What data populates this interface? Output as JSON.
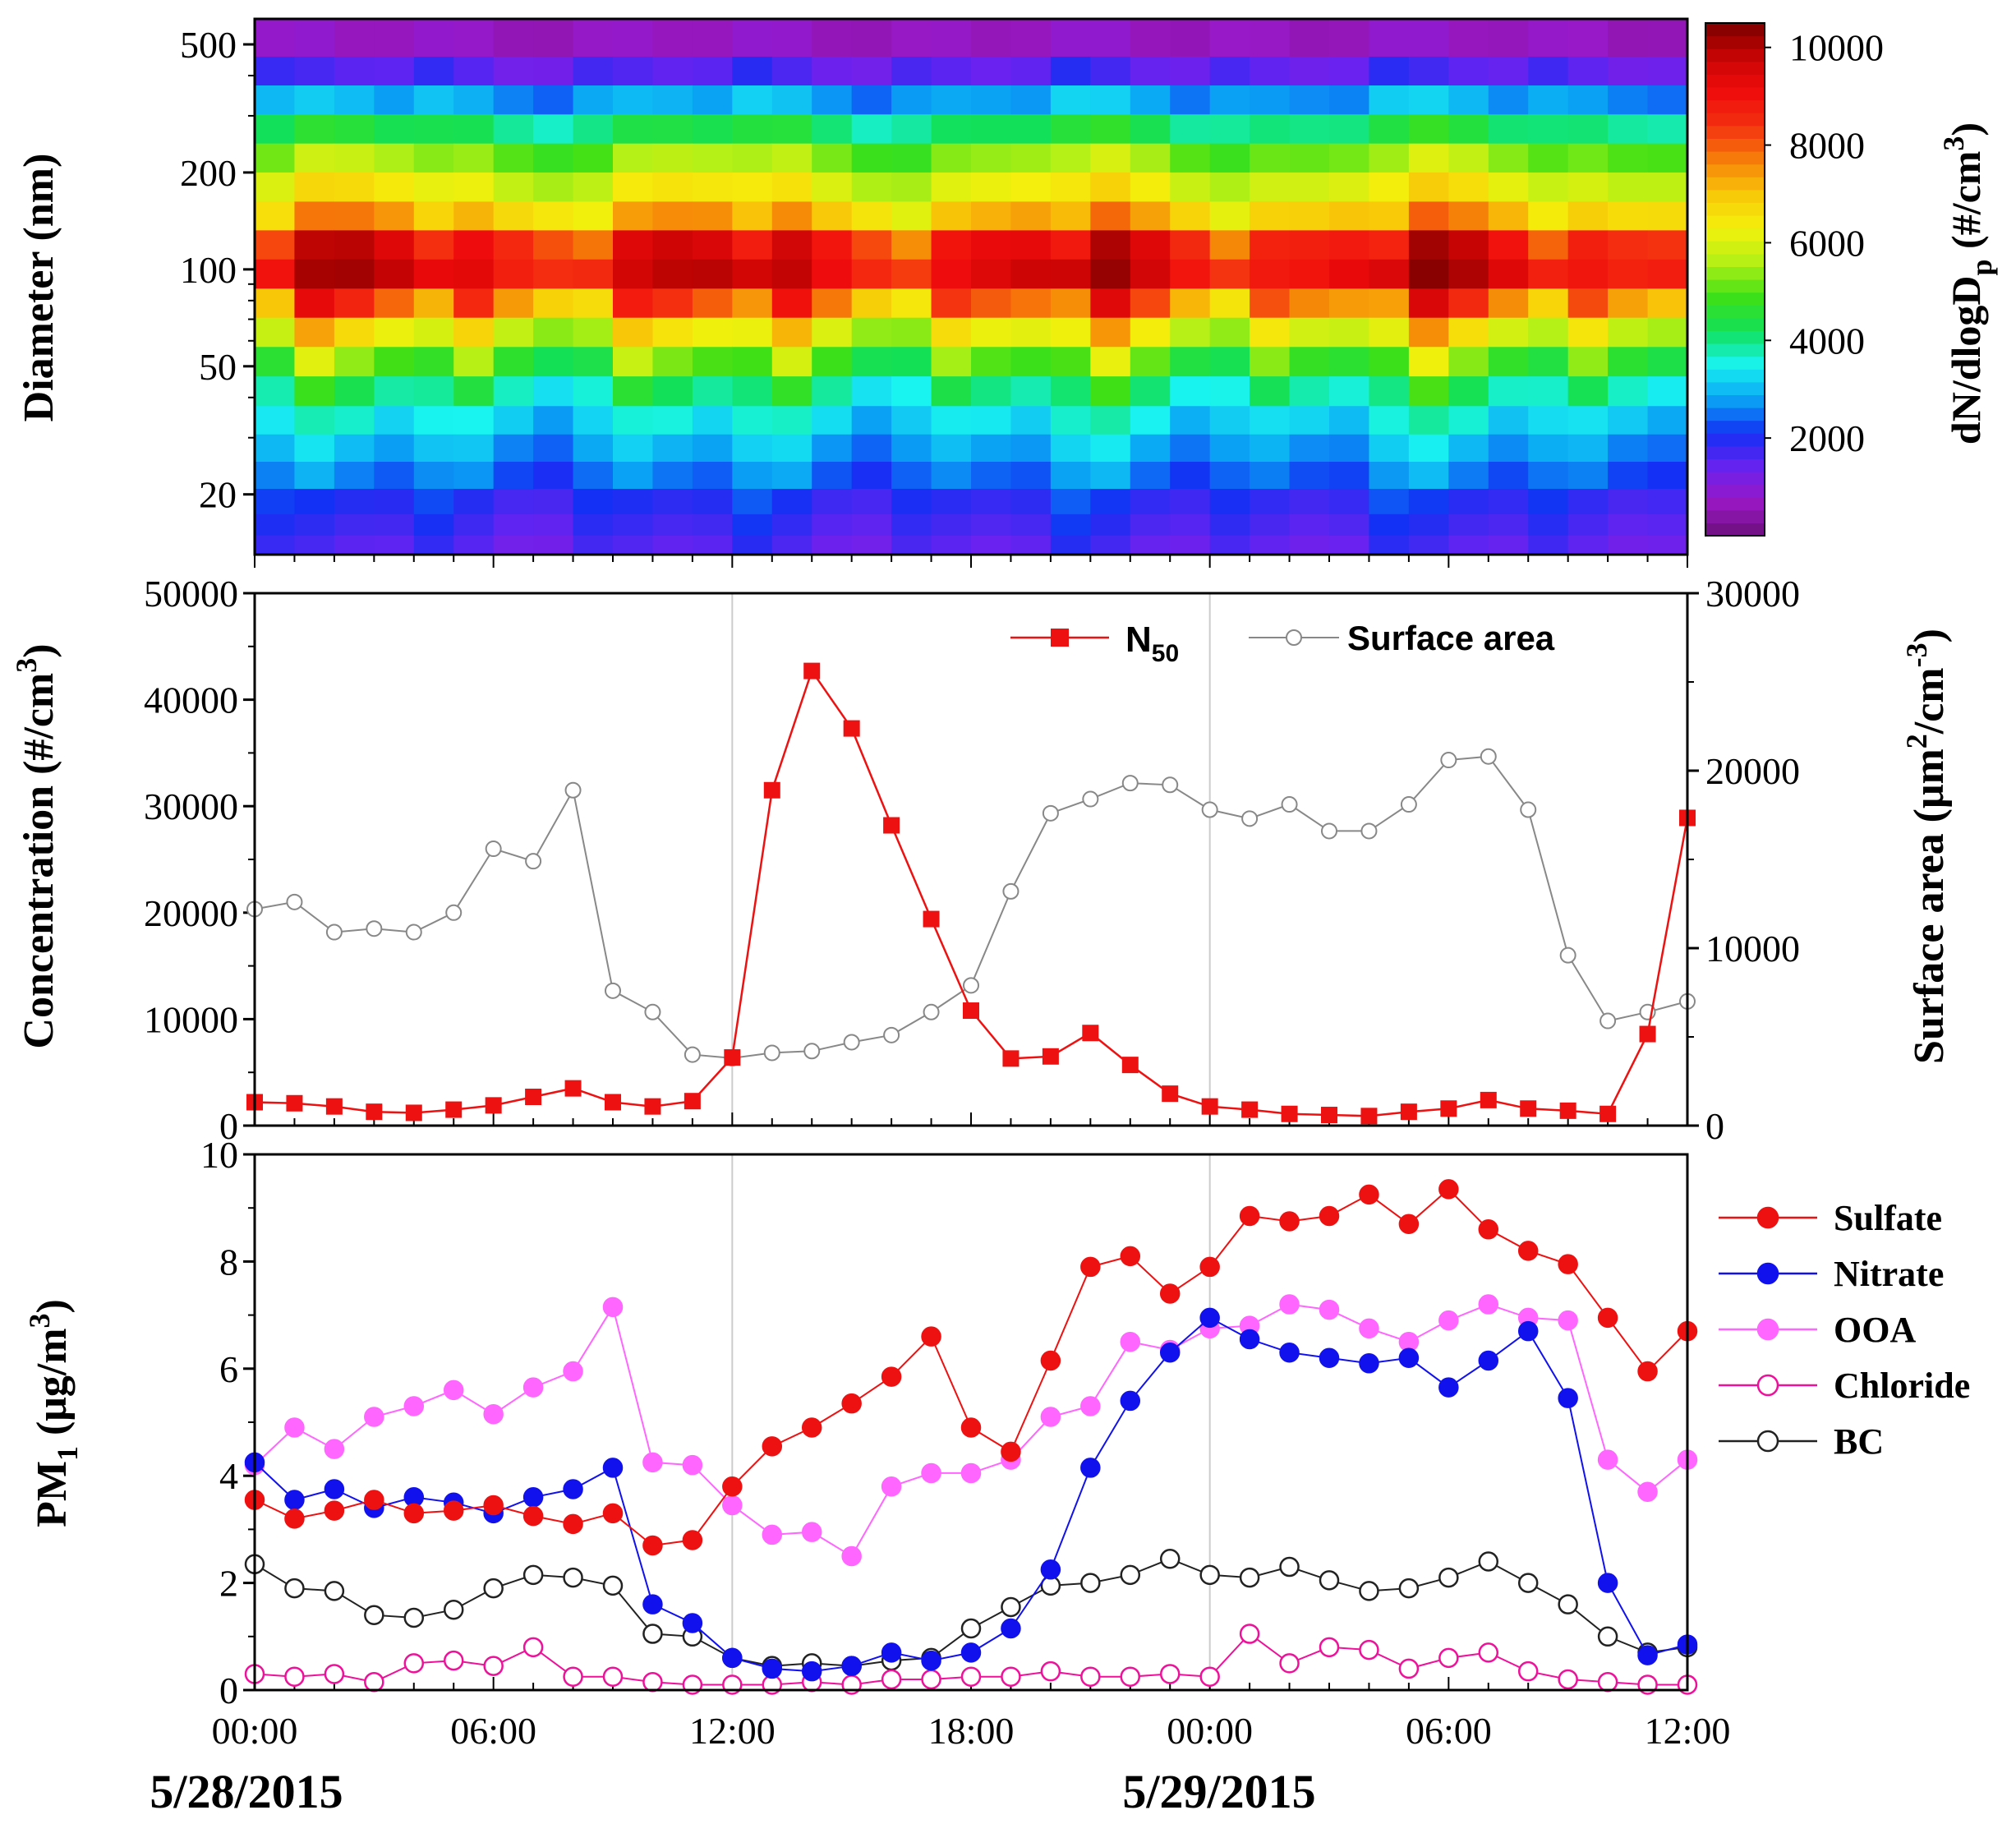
{
  "figure": {
    "x_ticks": [
      "00:00",
      "06:00",
      "12:00",
      "18:00",
      "00:00",
      "06:00",
      "12:00"
    ],
    "date_labels": [
      "5/28/2015",
      "5/29/2015"
    ]
  },
  "chart_data": [
    {
      "type": "heatmap",
      "title": "",
      "ylabel": "Diameter (nm)",
      "y_scale": "log",
      "ylim": [
        13,
        600
      ],
      "y_ticks": [
        20,
        50,
        100,
        200,
        500
      ],
      "y_tick_labels": [
        "20",
        "50",
        "100",
        "200",
        "500"
      ],
      "colorbar": {
        "label": "dN/dlogD",
        "label_sub": "p",
        "label_suffix": " (#/cm",
        "label_sup": "3",
        "label_end": ")",
        "range": [
          0,
          10500
        ],
        "ticks": [
          2000,
          4000,
          6000,
          8000,
          10000
        ],
        "tick_labels": [
          "2000",
          "4000",
          "6000",
          "8000",
          "10000"
        ],
        "stops": [
          "#6d0f7a",
          "#9a18c4",
          "#6a22f0",
          "#1230f4",
          "#0aa2f4",
          "#19f4f0",
          "#12e05a",
          "#3ee016",
          "#b4f016",
          "#f4f00c",
          "#f8c808",
          "#f67f08",
          "#f43010",
          "#f00c0c",
          "#c80404",
          "#7a0000"
        ]
      },
      "diameter_bins_nm": [
        14,
        16,
        19,
        23,
        28,
        34,
        42,
        52,
        64,
        79,
        97,
        120,
        147,
        181,
        223,
        274,
        338,
        415,
        510
      ],
      "hours": [
        "00",
        "01",
        "02",
        "03",
        "04",
        "05",
        "06",
        "07",
        "08",
        "09",
        "10",
        "11",
        "12",
        "13",
        "14",
        "15",
        "16",
        "17",
        "18",
        "19",
        "20",
        "21",
        "22",
        "23",
        "24",
        "25",
        "26",
        "27",
        "28",
        "29",
        "30",
        "31",
        "32",
        "33",
        "34",
        "35",
        "36"
      ],
      "values_profile_x100": [
        [
          18,
          20,
          22,
          26,
          30,
          34,
          38,
          46,
          58,
          70,
          90,
          82,
          66,
          60,
          52,
          42,
          30,
          18,
          8
        ],
        [
          16,
          18,
          20,
          28,
          32,
          36,
          46,
          58,
          70,
          88,
          96,
          94,
          74,
          64,
          56,
          44,
          30,
          16,
          8
        ],
        [
          14,
          16,
          18,
          24,
          28,
          34,
          40,
          50,
          62,
          80,
          94,
          92,
          72,
          62,
          54,
          42,
          28,
          14,
          6
        ],
        [
          14,
          16,
          18,
          22,
          26,
          30,
          36,
          46,
          58,
          74,
          92,
          88,
          70,
          60,
          52,
          40,
          26,
          14,
          6
        ]
      ]
    },
    {
      "type": "line",
      "title": "",
      "xlabel": "",
      "ylabel": "Concentration (#/cm",
      "ylabel_sup": "3",
      "ylabel_end": ")",
      "ylim": [
        0,
        50000
      ],
      "y_ticks": [
        0,
        10000,
        20000,
        30000,
        40000,
        50000
      ],
      "y_tick_labels": [
        "0",
        "10000",
        "20000",
        "30000",
        "40000",
        "50000"
      ],
      "y2label": "Surface area (μm",
      "y2label_sup1": "2",
      "y2label_mid": "/cm",
      "y2label_sup2": "-3",
      "y2label_end": ")",
      "y2lim": [
        0,
        30000
      ],
      "y2_ticks": [
        0,
        10000,
        20000,
        30000
      ],
      "y2_tick_labels": [
        "0",
        "10000",
        "20000",
        "30000"
      ],
      "x_hours": [
        0,
        1,
        2,
        3,
        4,
        5,
        6,
        7,
        8,
        9,
        10,
        11,
        12,
        13,
        14,
        15,
        16,
        17,
        18,
        19,
        20,
        21,
        22,
        23,
        24,
        25,
        26,
        27,
        28,
        29,
        30,
        31,
        32,
        33,
        34,
        35,
        36
      ],
      "series": [
        {
          "name": "N",
          "name_sub": "50",
          "axis": "left",
          "color": "#ee1111",
          "marker": "filled-square",
          "values": [
            2200,
            2100,
            1800,
            1300,
            1200,
            1500,
            1900,
            2700,
            3500,
            2200,
            1800,
            2300,
            6400,
            31500,
            42700,
            37300,
            28200,
            19400,
            10800,
            6300,
            6500,
            8700,
            5700,
            3000,
            1800,
            1500,
            1100,
            1000,
            900,
            1300,
            1600,
            2400,
            1600,
            1400,
            1100,
            8600,
            28900
          ]
        },
        {
          "name": "Surface area",
          "axis": "right",
          "color": "#888888",
          "marker": "open-circle",
          "values": [
            12200,
            12600,
            10900,
            11100,
            10900,
            12000,
            15600,
            14900,
            18900,
            7600,
            6400,
            4000,
            3800,
            4100,
            4200,
            4700,
            5100,
            6400,
            7900,
            13200,
            17600,
            18400,
            19300,
            19200,
            17800,
            17300,
            18100,
            16600,
            16600,
            18100,
            20600,
            20800,
            17800,
            9600,
            5900,
            6400,
            7000
          ]
        }
      ]
    },
    {
      "type": "line",
      "title": "",
      "xlabel": "",
      "ylabel": "PM",
      "ylabel_sub": "1",
      "ylabel_mid": " (μg/m",
      "ylabel_sup": "3",
      "ylabel_end": ")",
      "ylim": [
        0,
        10
      ],
      "y_ticks": [
        0,
        2,
        4,
        6,
        8,
        10
      ],
      "y_tick_labels": [
        "0",
        "2",
        "4",
        "6",
        "8",
        "10"
      ],
      "x_hours": [
        0,
        1,
        2,
        3,
        4,
        5,
        6,
        7,
        8,
        9,
        10,
        11,
        12,
        13,
        14,
        15,
        16,
        17,
        18,
        19,
        20,
        21,
        22,
        23,
        24,
        25,
        26,
        27,
        28,
        29,
        30,
        31,
        32,
        33,
        34,
        35,
        36
      ],
      "series": [
        {
          "name": "Sulfate",
          "color": "#ee1111",
          "marker": "filled-circle",
          "values": [
            3.55,
            3.2,
            3.35,
            3.55,
            3.3,
            3.35,
            3.45,
            3.25,
            3.1,
            3.3,
            2.7,
            2.8,
            3.8,
            4.55,
            4.9,
            5.35,
            5.85,
            6.6,
            4.9,
            4.45,
            6.15,
            7.9,
            8.1,
            7.4,
            7.9,
            8.85,
            8.75,
            8.85,
            9.25,
            8.7,
            9.35,
            8.6,
            8.2,
            7.95,
            6.95,
            5.95,
            6.7
          ]
        },
        {
          "name": "Nitrate",
          "color": "#1111ee",
          "marker": "filled-circle",
          "values": [
            4.25,
            3.55,
            3.75,
            3.4,
            3.6,
            3.5,
            3.3,
            3.6,
            3.75,
            4.15,
            1.6,
            1.25,
            0.6,
            0.4,
            0.35,
            0.45,
            0.7,
            0.55,
            0.7,
            1.15,
            2.25,
            4.15,
            5.4,
            6.3,
            6.95,
            6.55,
            6.3,
            6.2,
            6.1,
            6.2,
            5.65,
            6.15,
            6.7,
            5.45,
            2.0,
            0.65,
            0.85
          ]
        },
        {
          "name": "OOA",
          "color": "#ff66ff",
          "marker": "filled-circle",
          "values": [
            4.2,
            4.9,
            4.5,
            5.1,
            5.3,
            5.6,
            5.15,
            5.65,
            5.95,
            7.15,
            4.25,
            4.2,
            3.45,
            2.9,
            2.95,
            2.5,
            3.8,
            4.05,
            4.05,
            4.3,
            5.1,
            5.3,
            6.5,
            6.35,
            6.75,
            6.8,
            7.2,
            7.1,
            6.75,
            6.5,
            6.9,
            7.2,
            6.95,
            6.9,
            4.3,
            3.7,
            4.3
          ]
        },
        {
          "name": "Chloride",
          "color": "#ee1199",
          "marker": "open-circle",
          "values": [
            0.3,
            0.25,
            0.3,
            0.15,
            0.5,
            0.55,
            0.45,
            0.8,
            0.25,
            0.25,
            0.15,
            0.1,
            0.1,
            0.1,
            0.15,
            0.1,
            0.2,
            0.2,
            0.25,
            0.25,
            0.35,
            0.25,
            0.25,
            0.3,
            0.25,
            1.05,
            0.5,
            0.8,
            0.75,
            0.4,
            0.6,
            0.7,
            0.35,
            0.2,
            0.15,
            0.1,
            0.1
          ]
        },
        {
          "name": "BC",
          "color": "#222222",
          "marker": "open-circle",
          "values": [
            2.35,
            1.9,
            1.85,
            1.4,
            1.35,
            1.5,
            1.9,
            2.15,
            2.1,
            1.95,
            1.05,
            1.0,
            0.6,
            0.45,
            0.5,
            0.45,
            0.55,
            0.6,
            1.15,
            1.55,
            1.95,
            2.0,
            2.15,
            2.45,
            2.15,
            2.1,
            2.3,
            2.05,
            1.85,
            1.9,
            2.1,
            2.4,
            2.0,
            1.6,
            1.0,
            0.7,
            0.8
          ]
        }
      ]
    }
  ]
}
